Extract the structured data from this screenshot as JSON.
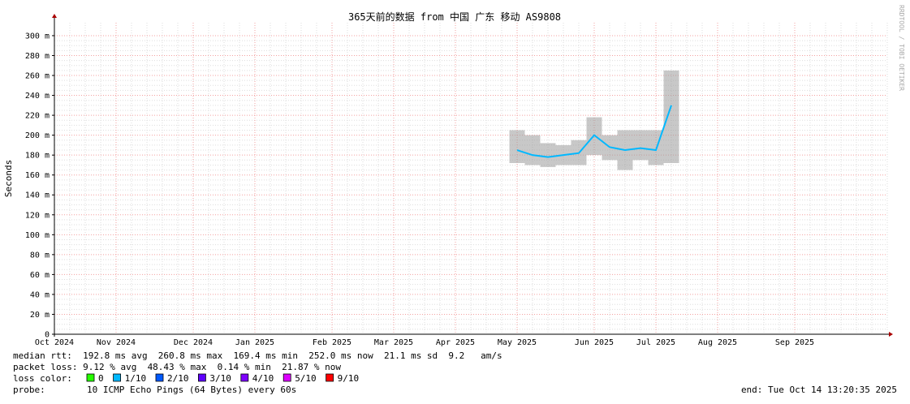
{
  "chart_data": {
    "type": "smoke",
    "title": "365天前的数据 from 中国 广东 移动 AS9808",
    "y_label": "Seconds",
    "side_label": "RRDTOOL / TOBI OETIKER",
    "categories": [
      "Oct 2024",
      null,
      null,
      null,
      "Nov 2024",
      null,
      null,
      null,
      null,
      "Dec 2024",
      null,
      null,
      null,
      "Jan 2025",
      null,
      null,
      null,
      null,
      "Feb 2025",
      null,
      null,
      null,
      "Mar 2025",
      null,
      null,
      null,
      "Apr 2025",
      null,
      null,
      null,
      "May 2025",
      null,
      null,
      null,
      null,
      "Jun 2025",
      null,
      null,
      null,
      "Jul 2025",
      null,
      null,
      null,
      "Aug 2025",
      null,
      null,
      null,
      null,
      "Sep 2025",
      null,
      null,
      null,
      null,
      null,
      null
    ],
    "values": [
      null,
      null,
      null,
      null,
      null,
      null,
      null,
      null,
      null,
      null,
      null,
      null,
      null,
      null,
      null,
      null,
      null,
      null,
      null,
      null,
      null,
      null,
      null,
      null,
      null,
      null,
      null,
      null,
      null,
      null,
      185,
      180,
      178,
      180,
      182,
      200,
      188,
      185,
      187,
      185,
      230,
      null,
      null,
      null,
      null,
      null,
      null,
      null,
      null,
      null,
      null,
      null,
      null,
      null,
      null
    ],
    "low": [
      null,
      null,
      null,
      null,
      null,
      null,
      null,
      null,
      null,
      null,
      null,
      null,
      null,
      null,
      null,
      null,
      null,
      null,
      null,
      null,
      null,
      null,
      null,
      null,
      null,
      null,
      null,
      null,
      null,
      null,
      172,
      170,
      168,
      170,
      170,
      180,
      175,
      165,
      175,
      170,
      172,
      null,
      null,
      null,
      null,
      null,
      null,
      null,
      null,
      null,
      null,
      null,
      null,
      null,
      null
    ],
    "high": [
      null,
      null,
      null,
      null,
      null,
      null,
      null,
      null,
      null,
      null,
      null,
      null,
      null,
      null,
      null,
      null,
      null,
      null,
      null,
      null,
      null,
      null,
      null,
      null,
      null,
      null,
      null,
      null,
      null,
      null,
      205,
      200,
      192,
      190,
      195,
      218,
      200,
      205,
      205,
      205,
      265,
      null,
      null,
      null,
      null,
      null,
      null,
      null,
      null,
      null,
      null,
      null,
      null,
      null,
      null
    ],
    "color": "#00b8ff",
    "smoke_color": "#9a9a9a",
    "ylim": [
      0,
      313
    ],
    "yticks": [
      0,
      {
        "value": 20,
        "label": "20 m"
      },
      {
        "value": 40,
        "label": "40 m"
      },
      {
        "value": 60,
        "label": "60 m"
      },
      {
        "value": 80,
        "label": "80 m"
      },
      {
        "value": 100,
        "label": "100 m"
      },
      {
        "value": 120,
        "label": "120 m"
      },
      {
        "value": 140,
        "label": "140 m"
      },
      {
        "value": 160,
        "label": "160 m"
      },
      {
        "value": 180,
        "label": "180 m"
      },
      {
        "value": 200,
        "label": "200 m"
      },
      {
        "value": 220,
        "label": "220 m"
      },
      {
        "value": 240,
        "label": "240 m"
      },
      {
        "value": 260,
        "label": "260 m"
      },
      {
        "value": 280,
        "label": "280 m"
      },
      {
        "value": 300,
        "label": "300 m"
      }
    ],
    "grid": true,
    "legend": {
      "median": "median rtt:  192.8 ms avg  260.8 ms max  169.4 ms min  252.0 ms now  21.1 ms sd  9.2   am/s",
      "loss": "packet loss: 9.12 % avg  48.43 % max  0.14 % min  21.87 % now",
      "loss_color_label": "loss color:",
      "loss_colors": [
        {
          "name": "0",
          "color": "#26ff00"
        },
        {
          "name": "1/10",
          "color": "#00b8ff"
        },
        {
          "name": "2/10",
          "color": "#0059ff"
        },
        {
          "name": "3/10",
          "color": "#5e00ff"
        },
        {
          "name": "4/10",
          "color": "#7e00ff"
        },
        {
          "name": "5/10",
          "color": "#dd00ff"
        },
        {
          "name": "9/10",
          "color": "#ff0000"
        }
      ],
      "probe_label": "probe:",
      "probe": "10 ICMP Echo Pings (64 Bytes) every 60s",
      "end": "end: Tue Oct 14 13:20:35 2025"
    }
  }
}
